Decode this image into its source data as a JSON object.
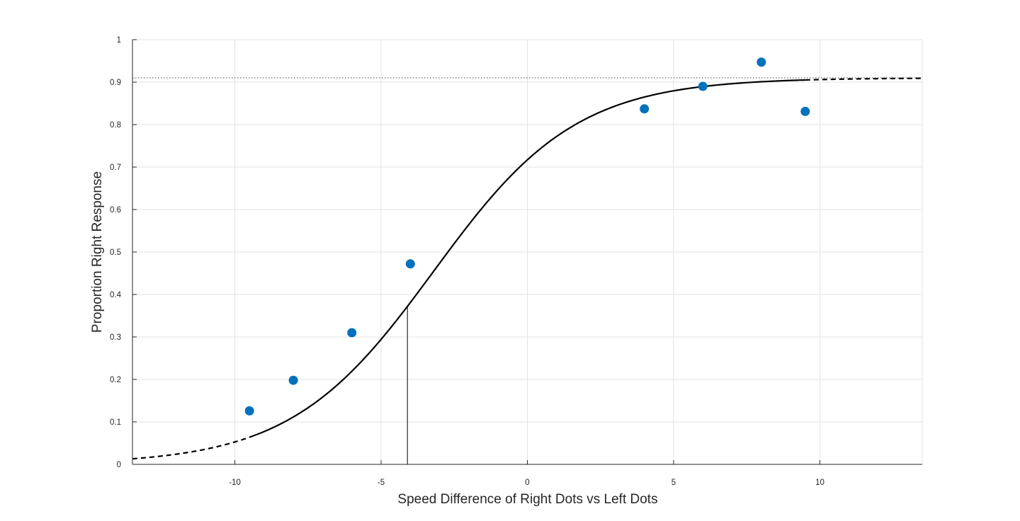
{
  "chart_data": {
    "type": "scatter",
    "title": "",
    "xlabel": "Speed Difference of Right Dots vs Left Dots",
    "ylabel": "Proportion Right Response",
    "xlim": [
      -13.5,
      13.5
    ],
    "ylim": [
      0,
      1
    ],
    "grid": true,
    "legend": "none",
    "x_ticks": [
      -10,
      -5,
      0,
      5,
      10
    ],
    "x_tick_labels": [
      "-10",
      "-5",
      "0",
      "5",
      "10"
    ],
    "y_ticks": [
      0,
      0.1,
      0.2,
      0.3,
      0.4,
      0.5,
      0.6,
      0.7,
      0.8,
      0.9,
      1
    ],
    "y_tick_labels": [
      "0",
      "0.1",
      "0.2",
      "0.3",
      "0.4",
      "0.5",
      "0.6",
      "0.7",
      "0.8",
      "0.9",
      "1"
    ],
    "series": [
      {
        "kind": "scatter",
        "color": "#0072bd",
        "x": [
          -9.5,
          -8,
          -6,
          -4,
          4,
          6,
          8,
          9.5
        ],
        "y": [
          0.126,
          0.198,
          0.31,
          0.472,
          0.837,
          0.89,
          0.947,
          0.831
        ]
      },
      {
        "kind": "fitted-curve",
        "color": "#000000",
        "function": "logistic",
        "guess_rate": 0,
        "lapse_upper": 0.91,
        "midpoint": -3.2,
        "slope": 0.41,
        "solid_range": [
          -9.5,
          9.5
        ],
        "dashed_outside_range": true
      }
    ],
    "annotations": {
      "threshold_line_x": -4.1,
      "upper_asymptote_y": 0.91
    }
  }
}
